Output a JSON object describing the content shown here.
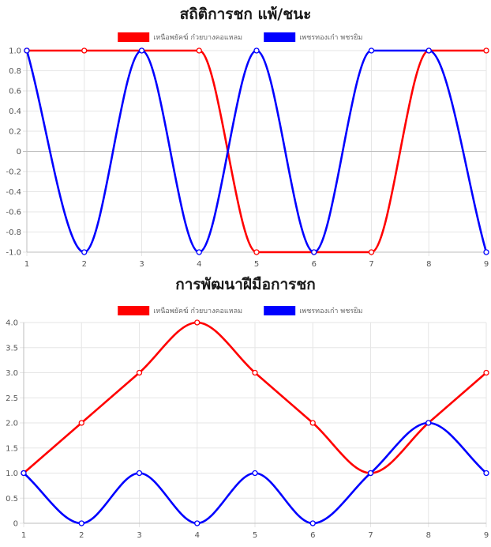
{
  "chart_data": [
    {
      "type": "line",
      "title": "สถิติการชก แพ้/ชนะ",
      "xlabel": "",
      "ylabel": "",
      "categories": [
        "1",
        "2",
        "3",
        "4",
        "5",
        "6",
        "7",
        "8",
        "9"
      ],
      "ylim": [
        -1.0,
        1.0
      ],
      "yticks": [
        "1.0",
        "0.8",
        "0.6",
        "0.4",
        "0.2",
        "0",
        "-0.2",
        "-0.4",
        "-0.6",
        "-0.8",
        "-1.0"
      ],
      "grid": true,
      "legend_position": "top",
      "series": [
        {
          "name": "เหนือพยัคฆ์ ก๋วยบางคอแหลม",
          "color": "#ff0000",
          "values": [
            1,
            1,
            1,
            1,
            -1,
            -1,
            -1,
            1,
            1
          ]
        },
        {
          "name": "เพชรทองเก๋า พชรยิม",
          "color": "#0000ff",
          "values": [
            1,
            -1,
            1,
            -1,
            1,
            -1,
            1,
            1,
            -1
          ]
        }
      ]
    },
    {
      "type": "line",
      "title": "การพัฒนาฝีมือการชก",
      "xlabel": "",
      "ylabel": "",
      "categories": [
        "1",
        "2",
        "3",
        "4",
        "5",
        "6",
        "7",
        "8",
        "9"
      ],
      "ylim": [
        0,
        4.0
      ],
      "yticks": [
        "4.0",
        "3.5",
        "3.0",
        "2.5",
        "2.0",
        "1.5",
        "1.0",
        "0.5",
        "0"
      ],
      "grid": true,
      "legend_position": "top",
      "series": [
        {
          "name": "เหนือพยัคฆ์ ก๋วยบางคอแหลม",
          "color": "#ff0000",
          "values": [
            1,
            2,
            3,
            4,
            3,
            2,
            1,
            2,
            3
          ]
        },
        {
          "name": "เพชรทองเก๋า พชรยิม",
          "color": "#0000ff",
          "values": [
            1,
            0,
            1,
            0,
            1,
            0,
            1,
            2,
            1
          ]
        }
      ]
    }
  ]
}
